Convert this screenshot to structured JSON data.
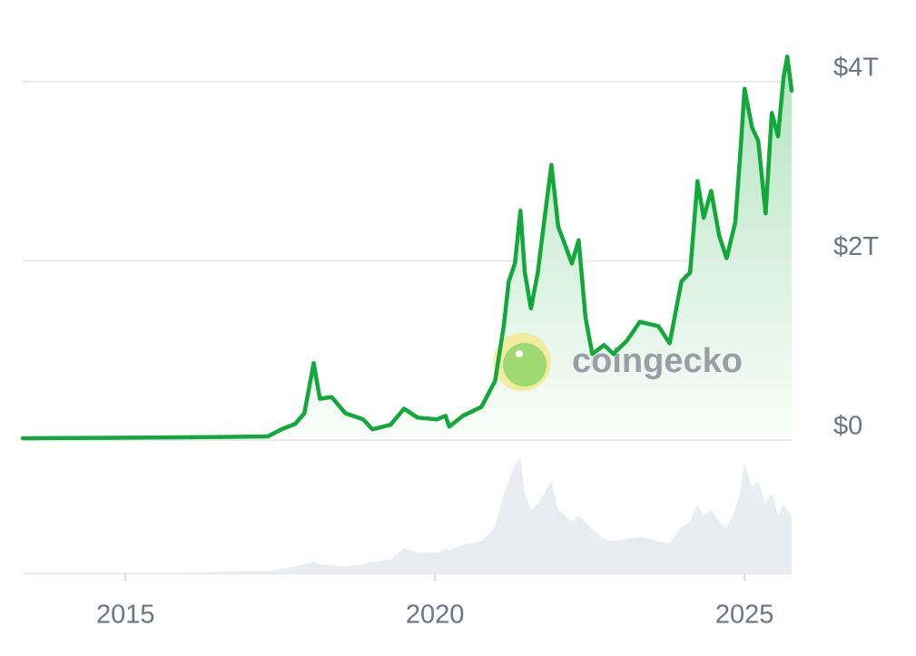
{
  "chart_data": {
    "type": "line",
    "color": "#12a83a",
    "grid": true,
    "watermark": "coingecko",
    "x": [
      2013.34,
      2015.91,
      2017.3,
      2017.52,
      2017.74,
      2017.89,
      2018.04,
      2018.14,
      2018.33,
      2018.55,
      2018.84,
      2018.99,
      2019.28,
      2019.5,
      2019.72,
      2020.03,
      2020.17,
      2020.23,
      2020.45,
      2020.75,
      2020.97,
      2021.11,
      2021.19,
      2021.29,
      2021.38,
      2021.45,
      2021.55,
      2021.66,
      2021.77,
      2021.88,
      2021.99,
      2022.1,
      2022.21,
      2022.32,
      2022.43,
      2022.54,
      2022.73,
      2022.88,
      2023.1,
      2023.31,
      2023.61,
      2023.79,
      2023.98,
      2024.12,
      2024.24,
      2024.34,
      2024.46,
      2024.59,
      2024.71,
      2024.85,
      2024.93,
      2025.0,
      2025.12,
      2025.22,
      2025.34,
      2025.44,
      2025.54,
      2025.63,
      2025.69,
      2025.76
    ],
    "values": [
      0.02,
      0.03,
      0.04,
      0.12,
      0.18,
      0.3,
      0.86,
      0.46,
      0.48,
      0.3,
      0.23,
      0.12,
      0.17,
      0.35,
      0.25,
      0.23,
      0.27,
      0.15,
      0.27,
      0.37,
      0.66,
      1.27,
      1.77,
      1.97,
      2.56,
      1.87,
      1.47,
      1.87,
      2.48,
      3.07,
      2.38,
      2.18,
      1.97,
      2.23,
      1.37,
      0.96,
      1.06,
      0.96,
      1.11,
      1.32,
      1.27,
      1.08,
      1.77,
      1.87,
      2.89,
      2.48,
      2.78,
      2.28,
      2.03,
      2.43,
      3.19,
      3.92,
      3.49,
      3.34,
      2.53,
      3.65,
      3.39,
      4.05,
      4.28,
      3.9
    ],
    "volume": [
      0,
      1,
      2,
      4,
      6,
      8,
      10,
      8,
      7,
      6,
      8,
      10,
      12,
      22,
      18,
      18,
      22,
      20,
      25,
      28,
      40,
      70,
      80,
      95,
      100,
      70,
      55,
      60,
      70,
      80,
      55,
      50,
      45,
      50,
      45,
      38,
      30,
      28,
      30,
      32,
      28,
      26,
      40,
      45,
      60,
      50,
      55,
      45,
      40,
      55,
      70,
      95,
      75,
      80,
      60,
      70,
      50,
      60,
      55,
      50
    ],
    "volume_lim": [
      0,
      100
    ],
    "xlim": [
      2013.34,
      2025.76
    ],
    "xticks": [
      2015,
      2020,
      2025
    ],
    "ylim": [
      0,
      4.35
    ],
    "yticks": [
      {
        "value": 0,
        "label": "$0"
      },
      {
        "value": 2,
        "label": "$2T"
      },
      {
        "value": 4,
        "label": "$4T"
      }
    ]
  }
}
